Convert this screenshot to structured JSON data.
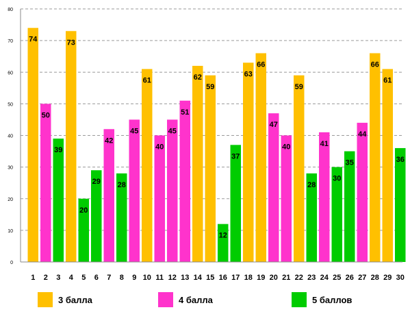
{
  "chart_data": {
    "type": "bar",
    "categories": [
      "1",
      "2",
      "3",
      "4",
      "5",
      "6",
      "7",
      "8",
      "9",
      "10",
      "11",
      "12",
      "13",
      "14",
      "15",
      "16",
      "17",
      "18",
      "19",
      "20",
      "21",
      "22",
      "23",
      "24",
      "25",
      "26",
      "27",
      "28",
      "29",
      "30"
    ],
    "values": [
      74,
      50,
      39,
      73,
      20,
      29,
      42,
      28,
      45,
      61,
      40,
      45,
      51,
      62,
      59,
      12,
      37,
      63,
      66,
      47,
      40,
      59,
      28,
      41,
      30,
      35,
      44,
      66,
      61,
      36
    ],
    "bar_series": [
      0,
      1,
      2,
      0,
      2,
      2,
      1,
      2,
      1,
      0,
      1,
      1,
      1,
      0,
      0,
      2,
      2,
      0,
      0,
      1,
      1,
      0,
      2,
      1,
      2,
      2,
      1,
      0,
      0,
      2
    ],
    "series": [
      {
        "name": "3 балла",
        "color": "#FFC000"
      },
      {
        "name": "4 балла",
        "color": "#FF33CC"
      },
      {
        "name": "5 баллов",
        "color": "#00CC00"
      }
    ],
    "y_ticks": [
      "0",
      "10",
      "20",
      "30",
      "40",
      "50",
      "60",
      "70",
      "80"
    ],
    "ylim": [
      0,
      80
    ],
    "grid": true,
    "legend_position": "bottom",
    "title": "",
    "xlabel": "",
    "ylabel": ""
  }
}
